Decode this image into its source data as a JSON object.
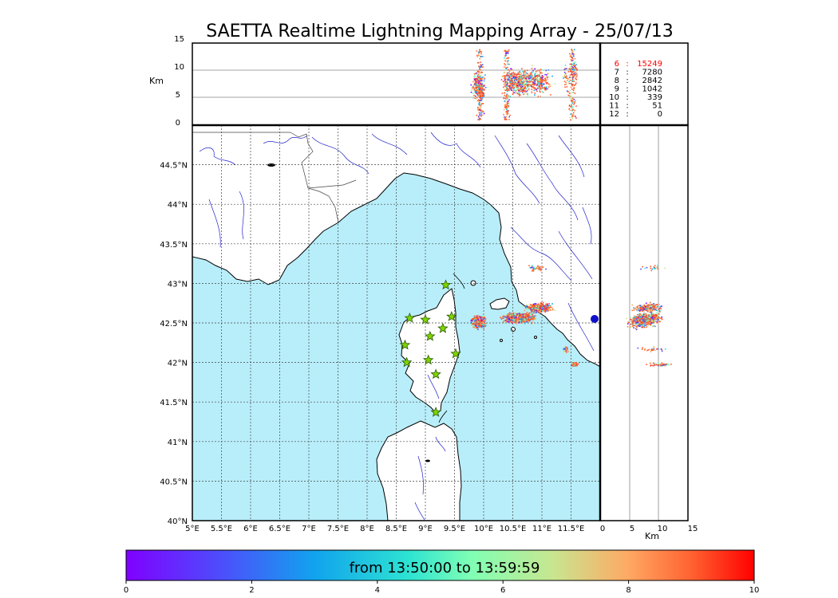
{
  "title": "SAETTA Realtime Lightning Mapping Array - 25/07/13",
  "axis_unit": "Km",
  "altitude_panel": {
    "y_ticks": [
      "15",
      "10",
      "5",
      "0"
    ],
    "y_unit": "Km",
    "gridlines_km": [
      5,
      10
    ]
  },
  "side_panel": {
    "x_ticks": [
      "0",
      "5",
      "10",
      "15"
    ],
    "x_unit": "Km",
    "gridlines_km": [
      5,
      10
    ]
  },
  "map_panel": {
    "lon_ticks": [
      "5°E",
      "5.5°E",
      "6°E",
      "6.5°E",
      "7°E",
      "7.5°E",
      "8°E",
      "8.5°E",
      "9°E",
      "9.5°E",
      "10°E",
      "10.5°E",
      "11°E",
      "11.5°E"
    ],
    "lat_ticks": [
      "44.5°N",
      "44°N",
      "43.5°N",
      "43°N",
      "42.5°N",
      "42°N",
      "41.5°N",
      "41°N",
      "40.5°N",
      "40°N"
    ],
    "lon_range": [
      5,
      12
    ],
    "lat_range": [
      40,
      45
    ],
    "grid": "dashed",
    "sea_color": "#b8eefa",
    "land_color": "#ffffff",
    "river_color": "#2222cc",
    "station_color": "#7fd400",
    "stations": [
      {
        "lon": 9.35,
        "lat": 42.98
      },
      {
        "lon": 8.73,
        "lat": 42.56
      },
      {
        "lon": 9.0,
        "lat": 42.54
      },
      {
        "lon": 9.45,
        "lat": 42.58
      },
      {
        "lon": 9.3,
        "lat": 42.43
      },
      {
        "lon": 9.08,
        "lat": 42.33
      },
      {
        "lon": 8.65,
        "lat": 42.22
      },
      {
        "lon": 9.52,
        "lat": 42.11
      },
      {
        "lon": 9.05,
        "lat": 42.03
      },
      {
        "lon": 8.68,
        "lat": 42.0
      },
      {
        "lon": 9.18,
        "lat": 41.85
      },
      {
        "lon": 9.18,
        "lat": 41.37
      }
    ]
  },
  "altitude_counts": {
    "rows": [
      {
        "km": "6",
        "count": "15249",
        "highlight": true
      },
      {
        "km": "7",
        "count": "7280",
        "highlight": false
      },
      {
        "km": "8",
        "count": "2842",
        "highlight": false
      },
      {
        "km": "9",
        "count": "1042",
        "highlight": false
      },
      {
        "km": "10",
        "count": "339",
        "highlight": false
      },
      {
        "km": "11",
        "count": "51",
        "highlight": false
      },
      {
        "km": "12",
        "count": "0",
        "highlight": false
      }
    ],
    "separator": ":",
    "highlight_color": "#ff0000"
  },
  "colorbar": {
    "label": "from 13:50:00 to 13:59:59",
    "ticks": [
      "0",
      "2",
      "4",
      "6",
      "8",
      "10"
    ],
    "colormap": "rainbow",
    "range": [
      0,
      10
    ]
  },
  "chart_data": {
    "type": "scatter",
    "title": "SAETTA Realtime Lightning Mapping Array - 25/07/13",
    "series_color_meaning": "time within window (minutes)",
    "clusters": [
      {
        "lon": 9.9,
        "lat": 42.52,
        "spread_lon": 0.15,
        "spread_lat": 0.1,
        "alt_km": 7
      },
      {
        "lon": 10.6,
        "lat": 42.57,
        "spread_lon": 0.35,
        "spread_lat": 0.08,
        "alt_km": 8
      },
      {
        "lon": 10.95,
        "lat": 42.7,
        "spread_lon": 0.3,
        "spread_lat": 0.08,
        "alt_km": 8
      },
      {
        "lon": 11.4,
        "lat": 42.17,
        "spread_lon": 0.05,
        "spread_lat": 0.04,
        "alt_km": 9
      },
      {
        "lon": 11.55,
        "lat": 41.98,
        "spread_lon": 0.08,
        "spread_lat": 0.03,
        "alt_km": 10
      },
      {
        "lon": 10.9,
        "lat": 43.2,
        "spread_lon": 0.2,
        "spread_lat": 0.05,
        "alt_km": 9
      }
    ]
  }
}
